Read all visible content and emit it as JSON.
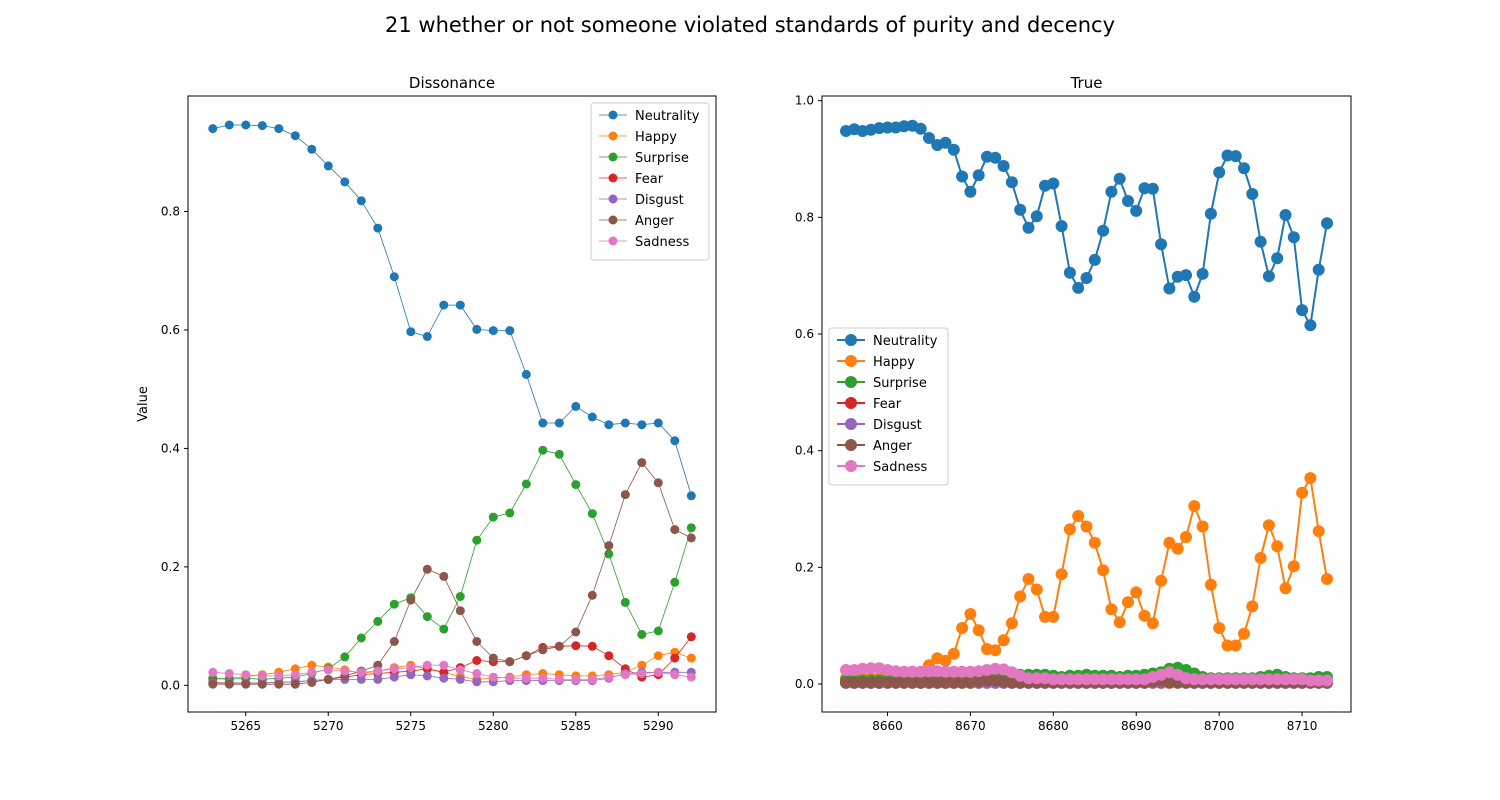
{
  "figure_title": "21 whether or not someone violated standards of purity and decency",
  "series_colors": {
    "Neutrality": "#1f77b4",
    "Happy": "#ff7f0e",
    "Surprise": "#2ca02c",
    "Fear": "#d62728",
    "Disgust": "#9467bd",
    "Anger": "#8c564b",
    "Sadness": "#e377c2"
  },
  "chart_data": [
    {
      "type": "line",
      "title": "Dissonance",
      "xlabel": "",
      "ylabel": "Value",
      "xlim": [
        5261.5,
        5293.5
      ],
      "ylim": [
        -0.045,
        0.995
      ],
      "xticks": [
        5265,
        5270,
        5275,
        5280,
        5285,
        5290
      ],
      "yticks": [
        0.0,
        0.2,
        0.4,
        0.6,
        0.8
      ],
      "ytick_labels": [
        "0.0",
        "0.2",
        "0.4",
        "0.6",
        "0.8"
      ],
      "legend_position": "upper right",
      "marker_style": "small",
      "x": [
        5263,
        5264,
        5265,
        5266,
        5267,
        5268,
        5269,
        5270,
        5271,
        5272,
        5273,
        5274,
        5275,
        5276,
        5277,
        5278,
        5279,
        5280,
        5281,
        5282,
        5283,
        5284,
        5285,
        5286,
        5287,
        5288,
        5289,
        5290,
        5291,
        5292
      ],
      "series": [
        {
          "name": "Neutrality",
          "values": [
            0.94,
            0.946,
            0.946,
            0.945,
            0.94,
            0.928,
            0.905,
            0.877,
            0.85,
            0.818,
            0.772,
            0.69,
            0.597,
            0.589,
            0.642,
            0.642,
            0.601,
            0.599,
            0.599,
            0.525,
            0.443,
            0.443,
            0.471,
            0.453,
            0.44,
            0.443,
            0.44,
            0.443,
            0.413,
            0.32
          ]
        },
        {
          "name": "Happy",
          "values": [
            0.01,
            0.012,
            0.015,
            0.018,
            0.022,
            0.028,
            0.034,
            0.031,
            0.026,
            0.02,
            0.024,
            0.03,
            0.034,
            0.028,
            0.022,
            0.015,
            0.01,
            0.012,
            0.014,
            0.018,
            0.02,
            0.018,
            0.016,
            0.016,
            0.018,
            0.022,
            0.034,
            0.05,
            0.056,
            0.046
          ]
        },
        {
          "name": "Surprise",
          "values": [
            0.012,
            0.01,
            0.012,
            0.01,
            0.012,
            0.014,
            0.02,
            0.028,
            0.048,
            0.08,
            0.108,
            0.137,
            0.148,
            0.116,
            0.095,
            0.15,
            0.245,
            0.284,
            0.291,
            0.34,
            0.397,
            0.39,
            0.339,
            0.29,
            0.222,
            0.14,
            0.086,
            0.092,
            0.174,
            0.266
          ]
        },
        {
          "name": "Fear",
          "values": [
            0.005,
            0.004,
            0.004,
            0.004,
            0.005,
            0.006,
            0.008,
            0.01,
            0.014,
            0.018,
            0.02,
            0.022,
            0.024,
            0.028,
            0.022,
            0.03,
            0.042,
            0.04,
            0.04,
            0.05,
            0.064,
            0.066,
            0.067,
            0.066,
            0.05,
            0.028,
            0.014,
            0.018,
            0.046,
            0.082
          ]
        },
        {
          "name": "Disgust",
          "values": [
            0.004,
            0.004,
            0.004,
            0.004,
            0.005,
            0.006,
            0.008,
            0.01,
            0.01,
            0.01,
            0.01,
            0.014,
            0.018,
            0.016,
            0.012,
            0.01,
            0.006,
            0.006,
            0.008,
            0.008,
            0.008,
            0.008,
            0.008,
            0.008,
            0.012,
            0.02,
            0.022,
            0.022,
            0.022,
            0.022
          ]
        },
        {
          "name": "Anger",
          "values": [
            0.002,
            0.002,
            0.002,
            0.002,
            0.002,
            0.002,
            0.005,
            0.01,
            0.016,
            0.024,
            0.034,
            0.074,
            0.144,
            0.196,
            0.184,
            0.126,
            0.074,
            0.046,
            0.04,
            0.05,
            0.06,
            0.066,
            0.09,
            0.152,
            0.236,
            0.322,
            0.376,
            0.342,
            0.263,
            0.249
          ]
        },
        {
          "name": "Sadness",
          "values": [
            0.022,
            0.02,
            0.018,
            0.016,
            0.016,
            0.018,
            0.022,
            0.026,
            0.024,
            0.022,
            0.024,
            0.028,
            0.03,
            0.034,
            0.034,
            0.026,
            0.02,
            0.014,
            0.012,
            0.012,
            0.012,
            0.01,
            0.01,
            0.01,
            0.014,
            0.018,
            0.02,
            0.022,
            0.018,
            0.014
          ]
        }
      ]
    },
    {
      "type": "line",
      "title": "True",
      "xlabel": "",
      "ylabel": "",
      "xlim": [
        8652.1,
        8715.9
      ],
      "ylim": [
        -0.048,
        1.008
      ],
      "xticks": [
        8660,
        8670,
        8680,
        8690,
        8700,
        8710
      ],
      "yticks": [
        0.0,
        0.2,
        0.4,
        0.6,
        0.8,
        1.0
      ],
      "ytick_labels": [
        "0.0",
        "0.2",
        "0.4",
        "0.6",
        "0.8",
        "1.0"
      ],
      "legend_position": "center left",
      "marker_style": "large",
      "x": [
        8655,
        8656,
        8657,
        8658,
        8659,
        8660,
        8661,
        8662,
        8663,
        8664,
        8665,
        8666,
        8667,
        8668,
        8669,
        8670,
        8671,
        8672,
        8673,
        8674,
        8675,
        8676,
        8677,
        8678,
        8679,
        8680,
        8681,
        8682,
        8683,
        8684,
        8685,
        8686,
        8687,
        8688,
        8689,
        8690,
        8691,
        8692,
        8693,
        8694,
        8695,
        8696,
        8697,
        8698,
        8699,
        8700,
        8701,
        8702,
        8703,
        8704,
        8705,
        8706,
        8707,
        8708,
        8709,
        8710,
        8711,
        8712,
        8713
      ],
      "series": [
        {
          "name": "Neutrality",
          "values": [
            0.948,
            0.951,
            0.948,
            0.95,
            0.953,
            0.954,
            0.954,
            0.956,
            0.957,
            0.952,
            0.936,
            0.924,
            0.928,
            0.916,
            0.87,
            0.844,
            0.872,
            0.904,
            0.902,
            0.888,
            0.86,
            0.813,
            0.782,
            0.802,
            0.854,
            0.858,
            0.785,
            0.705,
            0.679,
            0.696,
            0.727,
            0.777,
            0.844,
            0.866,
            0.828,
            0.811,
            0.85,
            0.849,
            0.754,
            0.678,
            0.698,
            0.701,
            0.664,
            0.703,
            0.806,
            0.877,
            0.906,
            0.905,
            0.884,
            0.84,
            0.758,
            0.699,
            0.73,
            0.804,
            0.766,
            0.641,
            0.615,
            0.71,
            0.79
          ]
        },
        {
          "name": "Happy",
          "values": [
            0.01,
            0.01,
            0.01,
            0.01,
            0.01,
            0.01,
            0.01,
            0.01,
            0.012,
            0.018,
            0.032,
            0.044,
            0.04,
            0.052,
            0.096,
            0.12,
            0.092,
            0.06,
            0.058,
            0.075,
            0.104,
            0.15,
            0.18,
            0.162,
            0.115,
            0.115,
            0.188,
            0.265,
            0.288,
            0.27,
            0.242,
            0.195,
            0.128,
            0.106,
            0.14,
            0.157,
            0.117,
            0.104,
            0.177,
            0.242,
            0.232,
            0.252,
            0.305,
            0.27,
            0.17,
            0.096,
            0.066,
            0.066,
            0.086,
            0.133,
            0.216,
            0.272,
            0.236,
            0.164,
            0.202,
            0.328,
            0.353,
            0.262,
            0.18
          ]
        },
        {
          "name": "Surprise",
          "values": [
            0.006,
            0.006,
            0.006,
            0.006,
            0.006,
            0.006,
            0.006,
            0.006,
            0.006,
            0.006,
            0.006,
            0.006,
            0.006,
            0.006,
            0.006,
            0.006,
            0.006,
            0.008,
            0.01,
            0.012,
            0.014,
            0.016,
            0.016,
            0.016,
            0.016,
            0.014,
            0.012,
            0.014,
            0.014,
            0.016,
            0.014,
            0.014,
            0.014,
            0.012,
            0.014,
            0.014,
            0.016,
            0.018,
            0.02,
            0.026,
            0.028,
            0.024,
            0.018,
            0.012,
            0.01,
            0.01,
            0.01,
            0.01,
            0.01,
            0.01,
            0.012,
            0.014,
            0.016,
            0.012,
            0.01,
            0.01,
            0.01,
            0.012,
            0.012
          ]
        },
        {
          "name": "Fear",
          "values": [
            0.002,
            0.002,
            0.002,
            0.002,
            0.002,
            0.002,
            0.002,
            0.002,
            0.002,
            0.002,
            0.002,
            0.002,
            0.002,
            0.002,
            0.002,
            0.002,
            0.002,
            0.002,
            0.002,
            0.002,
            0.002,
            0.002,
            0.002,
            0.002,
            0.002,
            0.002,
            0.002,
            0.002,
            0.002,
            0.002,
            0.002,
            0.002,
            0.002,
            0.002,
            0.002,
            0.002,
            0.002,
            0.002,
            0.002,
            0.002,
            0.002,
            0.002,
            0.002,
            0.002,
            0.002,
            0.002,
            0.002,
            0.002,
            0.002,
            0.002,
            0.002,
            0.002,
            0.002,
            0.002,
            0.002,
            0.002,
            0.002,
            0.002,
            0.002
          ]
        },
        {
          "name": "Disgust",
          "values": [
            0.002,
            0.002,
            0.002,
            0.002,
            0.002,
            0.002,
            0.002,
            0.002,
            0.002,
            0.002,
            0.002,
            0.002,
            0.002,
            0.002,
            0.002,
            0.002,
            0.002,
            0.002,
            0.002,
            0.002,
            0.002,
            0.002,
            0.002,
            0.002,
            0.002,
            0.002,
            0.002,
            0.002,
            0.002,
            0.002,
            0.002,
            0.002,
            0.002,
            0.002,
            0.002,
            0.002,
            0.002,
            0.002,
            0.004,
            0.006,
            0.004,
            0.002,
            0.002,
            0.002,
            0.002,
            0.002,
            0.002,
            0.002,
            0.002,
            0.002,
            0.002,
            0.002,
            0.002,
            0.002,
            0.002,
            0.002,
            0.002,
            0.002,
            0.002
          ]
        },
        {
          "name": "Anger",
          "values": [
            0.002,
            0.002,
            0.002,
            0.002,
            0.002,
            0.002,
            0.002,
            0.002,
            0.002,
            0.002,
            0.002,
            0.002,
            0.002,
            0.002,
            0.002,
            0.002,
            0.004,
            0.006,
            0.006,
            0.004,
            0.002,
            0.002,
            0.002,
            0.002,
            0.002,
            0.002,
            0.002,
            0.002,
            0.002,
            0.002,
            0.002,
            0.002,
            0.002,
            0.002,
            0.002,
            0.002,
            0.002,
            0.004,
            0.006,
            0.004,
            0.002,
            0.002,
            0.002,
            0.002,
            0.002,
            0.002,
            0.002,
            0.002,
            0.002,
            0.002,
            0.002,
            0.002,
            0.002,
            0.002,
            0.002,
            0.002,
            0.002,
            0.002,
            0.002
          ]
        },
        {
          "name": "Sadness",
          "values": [
            0.024,
            0.024,
            0.026,
            0.027,
            0.027,
            0.024,
            0.022,
            0.021,
            0.021,
            0.021,
            0.022,
            0.022,
            0.021,
            0.021,
            0.021,
            0.021,
            0.022,
            0.024,
            0.026,
            0.025,
            0.02,
            0.014,
            0.01,
            0.01,
            0.01,
            0.008,
            0.008,
            0.008,
            0.008,
            0.008,
            0.008,
            0.008,
            0.008,
            0.008,
            0.008,
            0.008,
            0.008,
            0.012,
            0.016,
            0.02,
            0.016,
            0.01,
            0.008,
            0.008,
            0.008,
            0.008,
            0.008,
            0.008,
            0.008,
            0.008,
            0.008,
            0.008,
            0.008,
            0.008,
            0.008,
            0.008,
            0.006,
            0.006,
            0.006
          ]
        }
      ]
    }
  ]
}
